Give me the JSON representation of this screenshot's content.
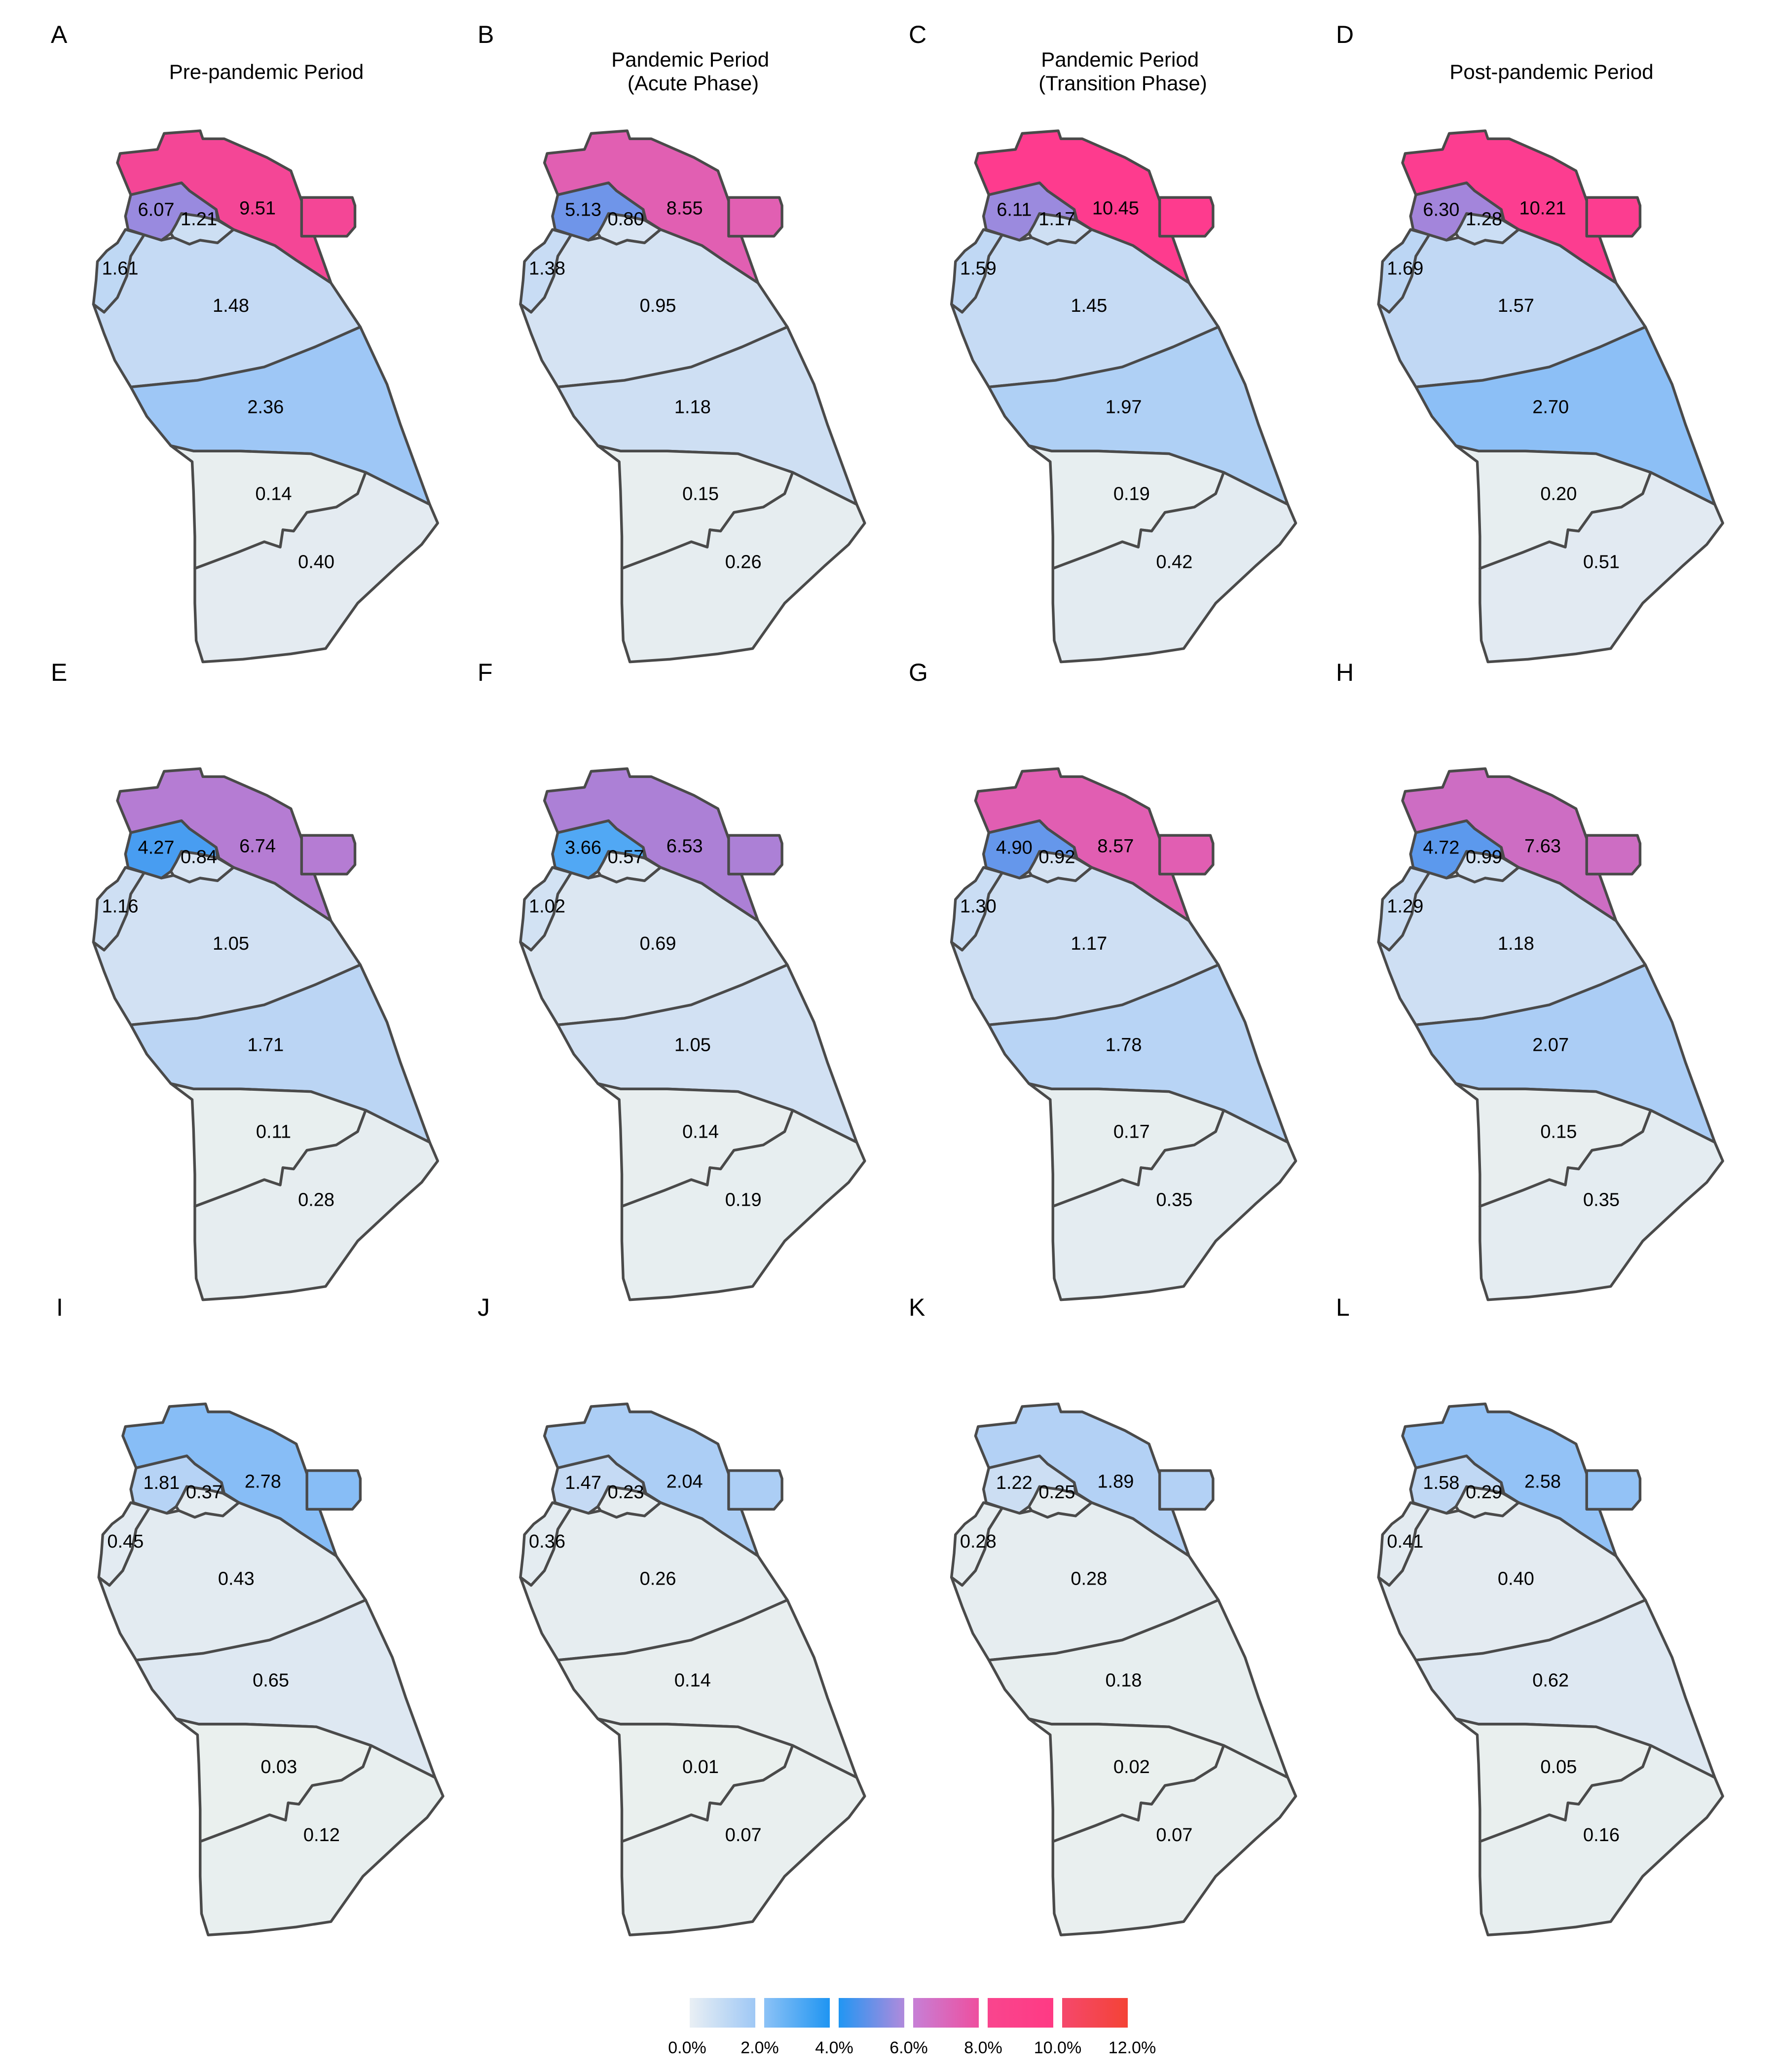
{
  "columns": [
    [
      "Pre-pandemic Period"
    ],
    [
      "Pandemic Period",
      "(Acute Phase)"
    ],
    [
      "Pandemic Period",
      "(Transition Phase)"
    ],
    [
      "Post-pandemic Period"
    ]
  ],
  "panels": [
    {
      "label": "A",
      "values": [
        "9.51",
        "6.07",
        "1.21",
        "1.61",
        "1.48",
        "2.36",
        "0.14",
        "0.40"
      ]
    },
    {
      "label": "B",
      "values": [
        "8.55",
        "5.13",
        "0.80",
        "1.38",
        "0.95",
        "1.18",
        "0.15",
        "0.26"
      ]
    },
    {
      "label": "C",
      "values": [
        "10.45",
        "6.11",
        "1.17",
        "1.59",
        "1.45",
        "1.97",
        "0.19",
        "0.42"
      ]
    },
    {
      "label": "D",
      "values": [
        "10.21",
        "6.30",
        "1.28",
        "1.69",
        "1.57",
        "2.70",
        "0.20",
        "0.51"
      ]
    },
    {
      "label": "E",
      "values": [
        "6.74",
        "4.27",
        "0.84",
        "1.16",
        "1.05",
        "1.71",
        "0.11",
        "0.28"
      ]
    },
    {
      "label": "F",
      "values": [
        "6.53",
        "3.66",
        "0.57",
        "1.02",
        "0.69",
        "1.05",
        "0.14",
        "0.19"
      ]
    },
    {
      "label": "G",
      "values": [
        "8.57",
        "4.90",
        "0.92",
        "1.30",
        "1.17",
        "1.78",
        "0.17",
        "0.35"
      ]
    },
    {
      "label": "H",
      "values": [
        "7.63",
        "4.72",
        "0.99",
        "1.29",
        "1.18",
        "2.07",
        "0.15",
        "0.35"
      ]
    },
    {
      "label": "I",
      "values": [
        "2.78",
        "1.81",
        "0.37",
        "0.45",
        "0.43",
        "0.65",
        "0.03",
        "0.12"
      ]
    },
    {
      "label": "J",
      "values": [
        "2.04",
        "1.47",
        "0.23",
        "0.36",
        "0.26",
        "0.14",
        "0.01",
        "0.07"
      ]
    },
    {
      "label": "K",
      "values": [
        "1.89",
        "1.22",
        "0.25",
        "0.28",
        "0.28",
        "0.18",
        "0.02",
        "0.07"
      ]
    },
    {
      "label": "L",
      "values": [
        "2.58",
        "1.58",
        "0.29",
        "0.41",
        "0.40",
        "0.62",
        "0.05",
        "0.16"
      ]
    }
  ],
  "legend": {
    "ticks": [
      "0.0%",
      "2.0%",
      "4.0%",
      "6.0%",
      "8.0%",
      "10.0%",
      "12.0%"
    ],
    "color_stops": [
      "#e8eef4",
      "#2196f3",
      "#9a8ee0",
      "#e060b0",
      "#ff3a8e",
      "#f44336"
    ]
  },
  "colors": {
    "border": "#4a4a4a"
  }
}
